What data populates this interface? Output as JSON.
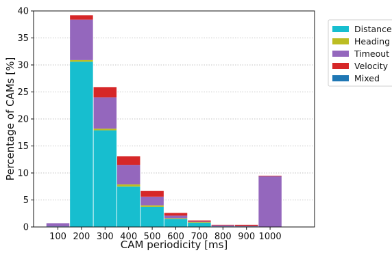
{
  "chart_data": {
    "type": "bar",
    "stacked": true,
    "title": "",
    "xlabel": "CAM periodicity [ms]",
    "ylabel": "Percentage of CAMs [%]",
    "categories": [
      "100",
      "200",
      "300",
      "400",
      "500",
      "600",
      "700",
      "800",
      "900",
      "1000"
    ],
    "ylim": [
      0,
      40
    ],
    "yticks": [
      0,
      5,
      10,
      15,
      20,
      25,
      30,
      35,
      40
    ],
    "grid": "horizontal dotted",
    "legend_position": "top-right outside plot",
    "series": [
      {
        "name": "Distance",
        "color": "#17becf",
        "values": [
          0.1,
          30.6,
          17.9,
          7.5,
          3.7,
          1.5,
          0.8,
          0.1,
          0.1,
          0.0
        ]
      },
      {
        "name": "Heading",
        "color": "#bcbd22",
        "values": [
          0.0,
          0.3,
          0.3,
          0.4,
          0.3,
          0.1,
          0.1,
          0.0,
          0.0,
          0.0
        ]
      },
      {
        "name": "Timeout",
        "color": "#9467bd",
        "values": [
          0.6,
          7.5,
          5.8,
          3.6,
          1.6,
          0.5,
          0.1,
          0.2,
          0.1,
          9.4
        ]
      },
      {
        "name": "Velocity",
        "color": "#d62728",
        "values": [
          0.0,
          0.8,
          1.9,
          1.6,
          1.1,
          0.5,
          0.2,
          0.1,
          0.2,
          0.1
        ]
      },
      {
        "name": "Mixed",
        "color": "#1f77b4",
        "values": [
          0.0,
          0.0,
          0.0,
          0.0,
          0.0,
          0.0,
          0.0,
          0.0,
          0.0,
          0.0
        ]
      }
    ]
  }
}
